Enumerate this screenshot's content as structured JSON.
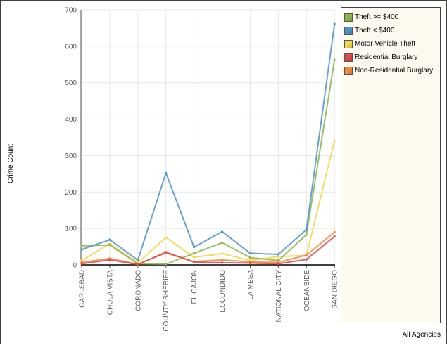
{
  "chart_data": {
    "type": "line",
    "ylabel": "Crime Count",
    "ylim": [
      0,
      700
    ],
    "yticks": [
      0,
      100,
      200,
      300,
      400,
      500,
      600,
      700
    ],
    "grid": true,
    "legend_position": "right",
    "categories": [
      "CARLSBAD",
      "CHULA VISTA",
      "CORONADO",
      "COUNTY SHERIFF",
      "EL CAJON",
      "ESCONDIDO",
      "LA MESA",
      "NATIONAL CITY",
      "OCEANSIDE",
      "SAN DIEGO"
    ],
    "series": [
      {
        "name": "Theft >= $400",
        "color": "#8db24e",
        "values": [
          52,
          55,
          3,
          2,
          32,
          61,
          20,
          12,
          83,
          563
        ]
      },
      {
        "name": "Theft < $400",
        "color": "#4a94c9",
        "values": [
          42,
          69,
          13,
          252,
          49,
          91,
          32,
          29,
          97,
          661
        ]
      },
      {
        "name": "Motor Vehicle Theft",
        "color": "#f0d64a",
        "values": [
          12,
          58,
          6,
          75,
          21,
          31,
          12,
          23,
          26,
          341
        ]
      },
      {
        "name": "Residential Burglary",
        "color": "#e0474c",
        "values": [
          3,
          14,
          1,
          35,
          8,
          6,
          5,
          3,
          15,
          78
        ]
      },
      {
        "name": "Non-Residential Burglary",
        "color": "#f08a3e",
        "values": [
          7,
          18,
          2,
          33,
          9,
          14,
          8,
          7,
          27,
          90
        ]
      }
    ]
  },
  "footer": {
    "label": "All Agencies"
  }
}
